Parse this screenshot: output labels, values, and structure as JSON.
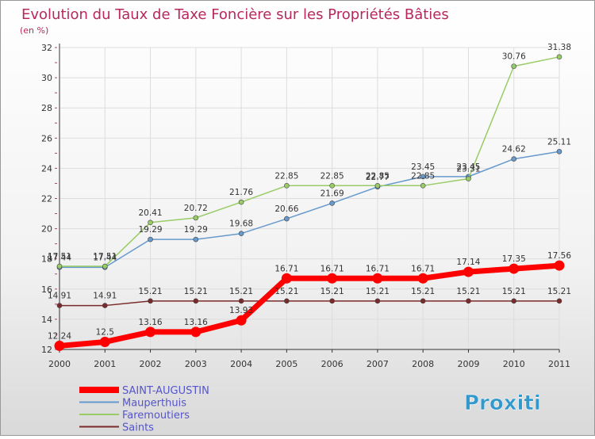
{
  "chart_data": {
    "type": "line",
    "title": "Evolution du Taux de Taxe Foncière sur les Propriétés Bâties",
    "ylabel": "(en %)",
    "x": [
      "2000",
      "2001",
      "2002",
      "2003",
      "2004",
      "2005",
      "2006",
      "2007",
      "2008",
      "2009",
      "2010",
      "2011"
    ],
    "ylim": [
      12,
      32
    ],
    "yticks": [
      12,
      14,
      16,
      18,
      20,
      22,
      24,
      26,
      28,
      30,
      32
    ],
    "grid": true,
    "legend_position": "bottom-left",
    "series": [
      {
        "name": "SAINT-AUGUSTIN",
        "color": "#ff0000",
        "values": [
          12.24,
          12.5,
          13.16,
          13.16,
          13.93,
          16.71,
          16.71,
          16.71,
          16.71,
          17.14,
          17.35,
          17.56
        ],
        "labels": [
          "12.24",
          "12.5",
          "13.16",
          "13.16",
          "13.93",
          "16.71",
          "16.71",
          "16.71",
          "16.71",
          "17.14",
          "17.35",
          "17.56"
        ]
      },
      {
        "name": "Mauperthuis",
        "color": "#6699cc",
        "values": [
          17.44,
          17.44,
          19.29,
          19.29,
          19.68,
          20.66,
          21.69,
          22.77,
          23.45,
          23.45,
          24.62,
          25.11
        ],
        "labels": [
          "17.44",
          "17.44",
          "19.29",
          "19.29",
          "19.68",
          "20.66",
          "21.69",
          "22.77",
          "23.45",
          "23.45",
          "24.62",
          "25.11"
        ]
      },
      {
        "name": "Faremoutiers",
        "color": "#99cc66",
        "values": [
          17.51,
          17.51,
          20.41,
          20.72,
          21.76,
          22.85,
          22.85,
          22.85,
          22.85,
          23.31,
          30.76,
          31.38
        ],
        "labels": [
          "17.51",
          "17.51",
          "20.41",
          "20.72",
          "21.76",
          "22.85",
          "22.85",
          "22.85",
          "22.85",
          "23.31",
          "30.76",
          "31.38"
        ]
      },
      {
        "name": "Saints",
        "color": "#7a2a2a",
        "values": [
          14.91,
          14.91,
          15.21,
          15.21,
          15.21,
          15.21,
          15.21,
          15.21,
          15.21,
          15.21,
          15.21,
          15.21
        ],
        "labels": [
          "14.91",
          "14.91",
          "15.21",
          "15.21",
          "15.21",
          "15.21",
          "15.21",
          "15.21",
          "15.21",
          "15.21",
          "15.21",
          "15.21"
        ]
      }
    ]
  },
  "logo": {
    "text": "Proxiti"
  }
}
